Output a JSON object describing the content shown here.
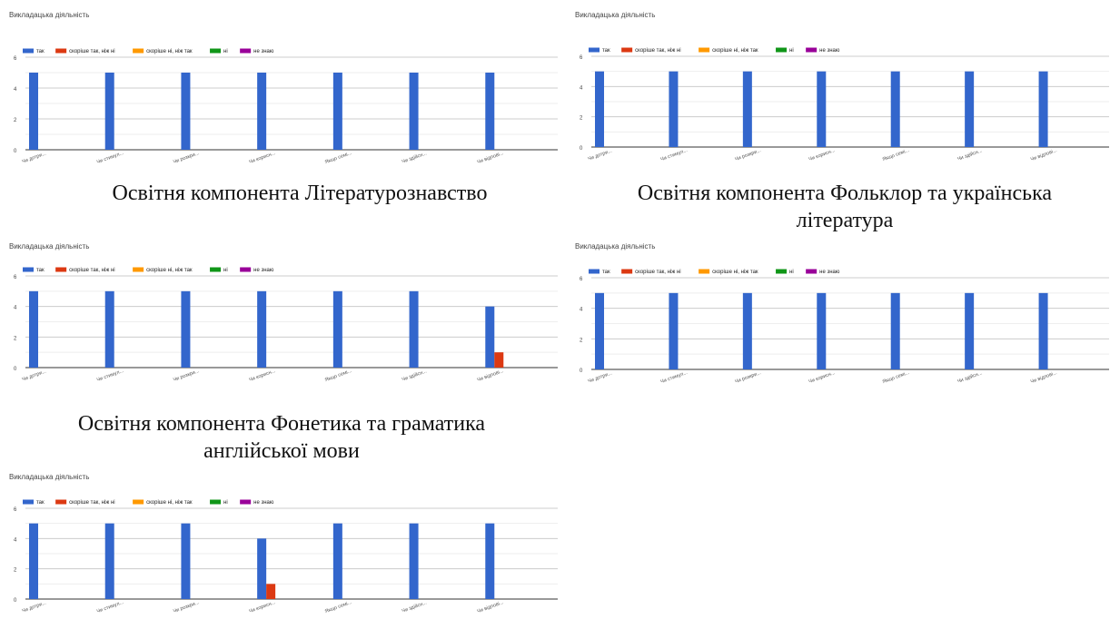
{
  "captions": [
    "Освітня компонента Літературознавство",
    "Освітня компонента Фольклор та українська література",
    "Освітня компонента Фонетика та граматика англійської мови"
  ],
  "chart_data": [
    {
      "type": "bar",
      "title": "Викладацька діяльність",
      "categories": [
        "Чи дотри...",
        "Чи стимул...",
        "Чи розкри...",
        "Чи корисн...",
        "Якщо семі...",
        "Чи здійсн...",
        "Чи відпові..."
      ],
      "series": [
        {
          "name": "так",
          "color": "#3366cc",
          "values": [
            5,
            5,
            5,
            5,
            5,
            5,
            5
          ]
        },
        {
          "name": "скоріше так, ніж ні",
          "color": "#dc3912",
          "values": [
            0,
            0,
            0,
            0,
            0,
            0,
            0
          ]
        },
        {
          "name": "скоріше ні, ніж так",
          "color": "#ff9900",
          "values": [
            0,
            0,
            0,
            0,
            0,
            0,
            0
          ]
        },
        {
          "name": "ні",
          "color": "#109618",
          "values": [
            0,
            0,
            0,
            0,
            0,
            0,
            0
          ]
        },
        {
          "name": "не знаю",
          "color": "#990099",
          "values": [
            0,
            0,
            0,
            0,
            0,
            0,
            0
          ]
        }
      ],
      "ylim": [
        0,
        6
      ],
      "yticks": [
        0,
        2,
        4,
        6
      ],
      "grid": true,
      "legend": "top-left"
    },
    {
      "type": "bar",
      "title": "Викладацька діяльність",
      "categories": [
        "Чи дотри...",
        "Чи стимул...",
        "Чи розкри...",
        "Чи корисн...",
        "Якщо семі...",
        "Чи здійсн...",
        "Чи відпові..."
      ],
      "series": [
        {
          "name": "так",
          "color": "#3366cc",
          "values": [
            5,
            5,
            5,
            5,
            5,
            5,
            5
          ]
        },
        {
          "name": "скоріше так, ніж ні",
          "color": "#dc3912",
          "values": [
            0,
            0,
            0,
            0,
            0,
            0,
            0
          ]
        },
        {
          "name": "скоріше ні, ніж так",
          "color": "#ff9900",
          "values": [
            0,
            0,
            0,
            0,
            0,
            0,
            0
          ]
        },
        {
          "name": "ні",
          "color": "#109618",
          "values": [
            0,
            0,
            0,
            0,
            0,
            0,
            0
          ]
        },
        {
          "name": "не знаю",
          "color": "#990099",
          "values": [
            0,
            0,
            0,
            0,
            0,
            0,
            0
          ]
        }
      ],
      "ylim": [
        0,
        6
      ],
      "yticks": [
        0,
        2,
        4,
        6
      ],
      "grid": true,
      "legend": "top-left"
    },
    {
      "type": "bar",
      "title": "Викладацька діяльність",
      "categories": [
        "Чи дотри...",
        "Чи стимул...",
        "Чи розкри...",
        "Чи корисн...",
        "Якщо семі...",
        "Чи здійсн...",
        "Чи відпові..."
      ],
      "series": [
        {
          "name": "так",
          "color": "#3366cc",
          "values": [
            5,
            5,
            5,
            5,
            5,
            5,
            4
          ]
        },
        {
          "name": "скоріше так, ніж ні",
          "color": "#dc3912",
          "values": [
            0,
            0,
            0,
            0,
            0,
            0,
            1
          ]
        },
        {
          "name": "скоріше ні, ніж так",
          "color": "#ff9900",
          "values": [
            0,
            0,
            0,
            0,
            0,
            0,
            0
          ]
        },
        {
          "name": "ні",
          "color": "#109618",
          "values": [
            0,
            0,
            0,
            0,
            0,
            0,
            0
          ]
        },
        {
          "name": "не знаю",
          "color": "#990099",
          "values": [
            0,
            0,
            0,
            0,
            0,
            0,
            0
          ]
        }
      ],
      "ylim": [
        0,
        6
      ],
      "yticks": [
        0,
        2,
        4,
        6
      ],
      "grid": true,
      "legend": "top-left"
    },
    {
      "type": "bar",
      "title": "Викладацька діяльність",
      "categories": [
        "Чи дотри...",
        "Чи стимул...",
        "Чи розкри...",
        "Чи корисн...",
        "Якщо семі...",
        "Чи здійсн...",
        "Чи відпові..."
      ],
      "series": [
        {
          "name": "так",
          "color": "#3366cc",
          "values": [
            5,
            5,
            5,
            5,
            5,
            5,
            5
          ]
        },
        {
          "name": "скоріше так, ніж ні",
          "color": "#dc3912",
          "values": [
            0,
            0,
            0,
            0,
            0,
            0,
            0
          ]
        },
        {
          "name": "скоріше ні, ніж так",
          "color": "#ff9900",
          "values": [
            0,
            0,
            0,
            0,
            0,
            0,
            0
          ]
        },
        {
          "name": "ні",
          "color": "#109618",
          "values": [
            0,
            0,
            0,
            0,
            0,
            0,
            0
          ]
        },
        {
          "name": "не знаю",
          "color": "#990099",
          "values": [
            0,
            0,
            0,
            0,
            0,
            0,
            0
          ]
        }
      ],
      "ylim": [
        0,
        6
      ],
      "yticks": [
        0,
        2,
        4,
        6
      ],
      "grid": true,
      "legend": "top-left"
    },
    {
      "type": "bar",
      "title": "Викладацька діяльність",
      "categories": [
        "Чи дотри...",
        "Чи стимул...",
        "Чи розкри...",
        "Чи корисн...",
        "Якщо семі...",
        "Чи здійсн...",
        "Чи відпові..."
      ],
      "series": [
        {
          "name": "так",
          "color": "#3366cc",
          "values": [
            5,
            5,
            5,
            4,
            5,
            5,
            5
          ]
        },
        {
          "name": "скоріше так, ніж ні",
          "color": "#dc3912",
          "values": [
            0,
            0,
            0,
            1,
            0,
            0,
            0
          ]
        },
        {
          "name": "скоріше ні, ніж так",
          "color": "#ff9900",
          "values": [
            0,
            0,
            0,
            0,
            0,
            0,
            0
          ]
        },
        {
          "name": "ні",
          "color": "#109618",
          "values": [
            0,
            0,
            0,
            0,
            0,
            0,
            0
          ]
        },
        {
          "name": "не знаю",
          "color": "#990099",
          "values": [
            0,
            0,
            0,
            0,
            0,
            0,
            0
          ]
        }
      ],
      "ylim": [
        0,
        6
      ],
      "yticks": [
        0,
        2,
        4,
        6
      ],
      "grid": true,
      "legend": "top-left"
    }
  ]
}
